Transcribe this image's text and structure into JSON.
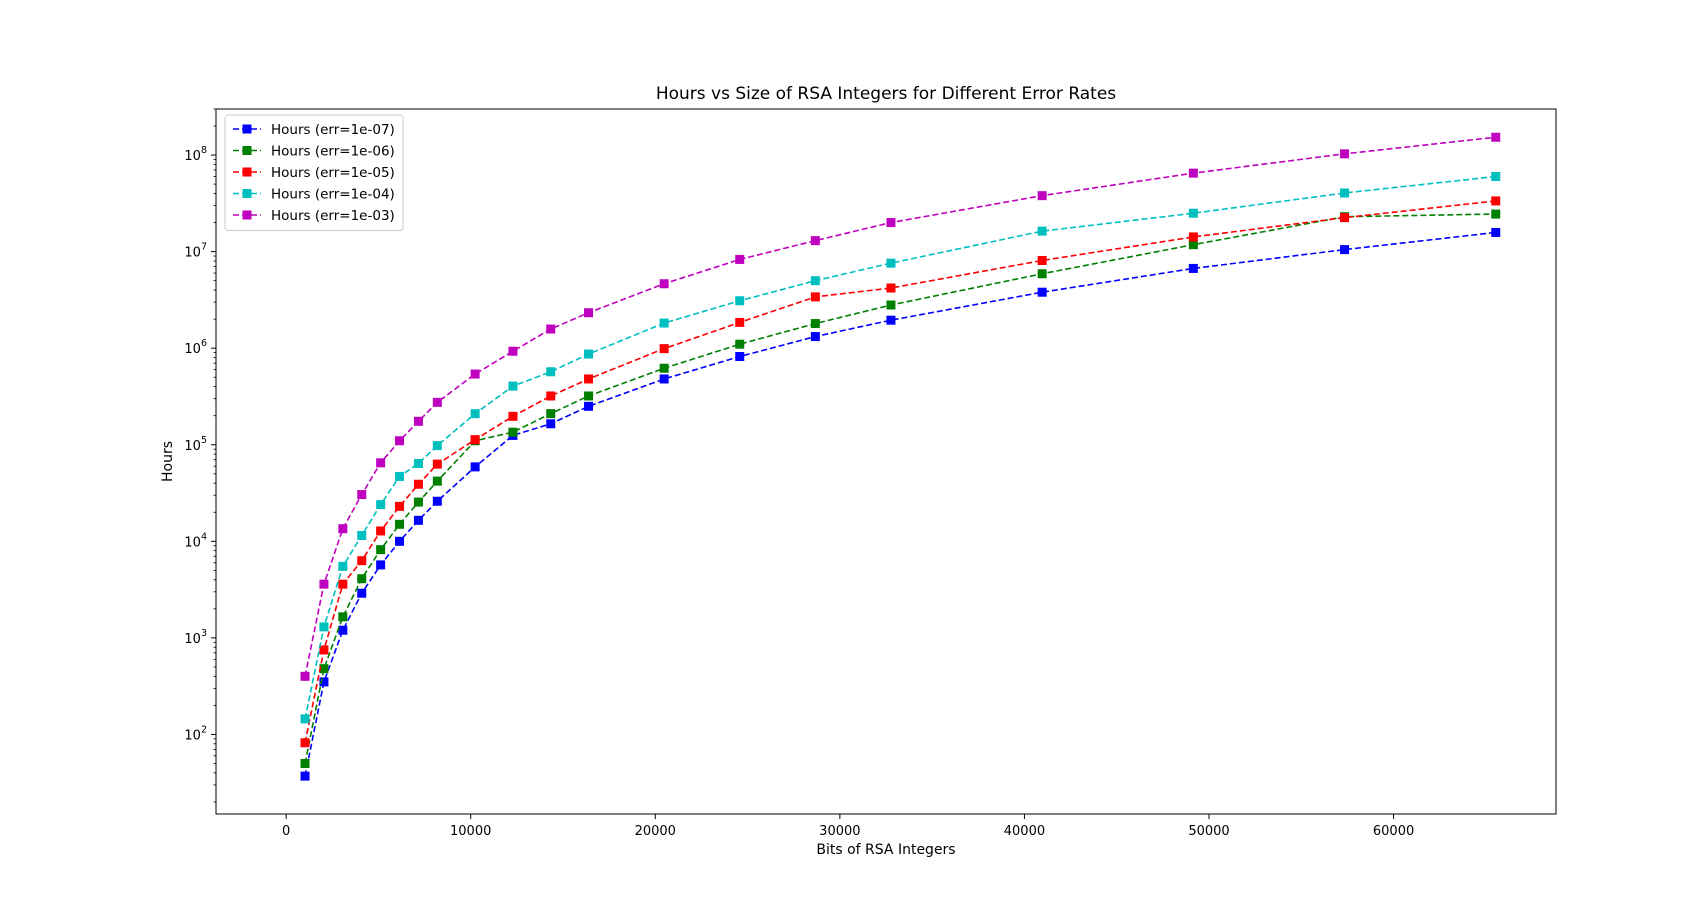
{
  "chart_data": {
    "type": "line",
    "title": "Hours vs Size of RSA Integers for Different Error Rates",
    "xlabel": "Bits of RSA Integers",
    "ylabel": "Hours",
    "xlim": [
      -3800,
      68800
    ],
    "ylim": [
      15,
      300000000
    ],
    "yscale": "log",
    "xticks": [
      0,
      10000,
      20000,
      30000,
      40000,
      50000,
      60000
    ],
    "xtick_labels": [
      "0",
      "10000",
      "20000",
      "30000",
      "40000",
      "50000",
      "60000"
    ],
    "yticks": [
      100,
      1000,
      10000,
      100000,
      1000000,
      10000000,
      100000000
    ],
    "ytick_labels": [
      {
        "base": "10",
        "exp": "2"
      },
      {
        "base": "10",
        "exp": "3"
      },
      {
        "base": "10",
        "exp": "4"
      },
      {
        "base": "10",
        "exp": "5"
      },
      {
        "base": "10",
        "exp": "6"
      },
      {
        "base": "10",
        "exp": "7"
      },
      {
        "base": "10",
        "exp": "8"
      }
    ],
    "grid": false,
    "legend_position": "top-left",
    "marker": "square",
    "linestyle": "dashed",
    "x": [
      1024,
      2048,
      3072,
      4096,
      5120,
      6144,
      7168,
      8192,
      10240,
      12288,
      14336,
      16384,
      20480,
      24576,
      28672,
      32768,
      40960,
      49152,
      57344,
      65536
    ],
    "series": [
      {
        "name": "Hours (err=1e-07)",
        "color": "#0000ff",
        "values": [
          37,
          350,
          1200,
          2900,
          5700,
          10000,
          16500,
          26000,
          59000,
          125000,
          165000,
          250000,
          480000,
          820000,
          1320000,
          1950000,
          3800000,
          6700000,
          10500000,
          15800000
        ]
      },
      {
        "name": "Hours (err=1e-06)",
        "color": "#008000",
        "values": [
          50,
          480,
          1650,
          4100,
          8200,
          15000,
          25500,
          42000,
          110000,
          135000,
          210000,
          320000,
          620000,
          1100000,
          1800000,
          2800000,
          5900000,
          11800000,
          23000000,
          24500000
        ]
      },
      {
        "name": "Hours (err=1e-05)",
        "color": "#ff0000",
        "values": [
          82,
          750,
          3600,
          6300,
          12800,
          23000,
          39000,
          63000,
          113000,
          197000,
          320000,
          480000,
          990000,
          1850000,
          3400000,
          4200000,
          8100000,
          14200000,
          22500000,
          33500000
        ]
      },
      {
        "name": "Hours (err=1e-04)",
        "color": "#00bfbf",
        "values": [
          145,
          1300,
          5500,
          11500,
          24000,
          47000,
          64000,
          98000,
          210000,
          405000,
          570000,
          870000,
          1820000,
          3100000,
          5000000,
          7600000,
          16300000,
          25000000,
          40500000,
          60000000
        ]
      },
      {
        "name": "Hours (err=1e-03)",
        "color": "#bf00bf",
        "values": [
          400,
          3600,
          13500,
          30500,
          65000,
          110000,
          175000,
          275000,
          540000,
          930000,
          1580000,
          2330000,
          4650000,
          8300000,
          13000000,
          20000000,
          38000000,
          65000000,
          103000000,
          153000000
        ]
      }
    ]
  }
}
